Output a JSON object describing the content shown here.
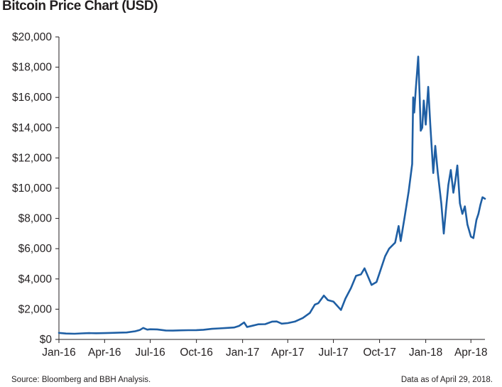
{
  "chart_data": {
    "type": "line",
    "title": "Bitcoin Price Chart  (USD)",
    "xlabel": "",
    "ylabel": "",
    "ylim": [
      0,
      20000
    ],
    "y_ticks": [
      "$0",
      "$2,000",
      "$4,000",
      "$6,000",
      "$8,000",
      "$10,000",
      "$12,000",
      "$14,000",
      "$16,000",
      "$18,000",
      "$20,000"
    ],
    "x_ticks": [
      "Jan-16",
      "Apr-16",
      "Jul-16",
      "Oct-16",
      "Jan-17",
      "Apr-17",
      "Jul-17",
      "Oct-17",
      "Jan-18",
      "Apr-18"
    ],
    "grid": false,
    "line_color": "#1f5fa4",
    "series": [
      {
        "x": [
          "2016-01-01",
          "2016-01-15",
          "2016-02-01",
          "2016-02-15",
          "2016-03-01",
          "2016-03-15",
          "2016-04-01",
          "2016-04-15",
          "2016-05-01",
          "2016-05-15",
          "2016-06-01",
          "2016-06-10",
          "2016-06-17",
          "2016-06-25",
          "2016-07-01",
          "2016-07-15",
          "2016-08-01",
          "2016-08-15",
          "2016-09-01",
          "2016-09-15",
          "2016-10-01",
          "2016-10-15",
          "2016-11-01",
          "2016-11-15",
          "2016-12-01",
          "2016-12-15",
          "2016-12-25",
          "2017-01-04",
          "2017-01-10",
          "2017-01-20",
          "2017-02-01",
          "2017-02-15",
          "2017-03-01",
          "2017-03-10",
          "2017-03-20",
          "2017-04-01",
          "2017-04-15",
          "2017-05-01",
          "2017-05-15",
          "2017-05-25",
          "2017-06-01",
          "2017-06-12",
          "2017-06-20",
          "2017-07-01",
          "2017-07-16",
          "2017-07-25",
          "2017-08-05",
          "2017-08-15",
          "2017-08-25",
          "2017-09-01",
          "2017-09-15",
          "2017-09-25",
          "2017-10-01",
          "2017-10-12",
          "2017-10-20",
          "2017-11-01",
          "2017-11-08",
          "2017-11-12",
          "2017-11-20",
          "2017-11-28",
          "2017-12-05",
          "2017-12-07",
          "2017-12-09",
          "2017-12-12",
          "2017-12-15",
          "2017-12-17",
          "2017-12-20",
          "2017-12-22",
          "2017-12-25",
          "2017-12-28",
          "2018-01-01",
          "2018-01-06",
          "2018-01-10",
          "2018-01-16",
          "2018-01-20",
          "2018-01-25",
          "2018-02-01",
          "2018-02-06",
          "2018-02-10",
          "2018-02-15",
          "2018-02-20",
          "2018-02-25",
          "2018-03-01",
          "2018-03-05",
          "2018-03-10",
          "2018-03-15",
          "2018-03-20",
          "2018-03-25",
          "2018-04-01",
          "2018-04-06",
          "2018-04-12",
          "2018-04-16",
          "2018-04-20",
          "2018-04-24",
          "2018-04-29"
        ],
        "values": [
          430,
          390,
          375,
          400,
          420,
          410,
          420,
          430,
          450,
          460,
          540,
          620,
          760,
          650,
          670,
          660,
          590,
          580,
          600,
          610,
          615,
          640,
          700,
          730,
          760,
          790,
          890,
          1120,
          820,
          900,
          1000,
          1010,
          1180,
          1190,
          1040,
          1080,
          1180,
          1420,
          1750,
          2300,
          2400,
          2900,
          2600,
          2500,
          1950,
          2700,
          3400,
          4200,
          4300,
          4700,
          3600,
          3800,
          4400,
          5500,
          6000,
          6400,
          7500,
          6500,
          8100,
          9800,
          11600,
          16000,
          15000,
          16500,
          17800,
          18700,
          16000,
          13800,
          14000,
          15800,
          14200,
          16700,
          14200,
          11000,
          12800,
          11000,
          9000,
          7000,
          8500,
          10200,
          11200,
          9700,
          10500,
          11500,
          9000,
          8300,
          8800,
          7600,
          6800,
          6700,
          7900,
          8300,
          8900,
          9400,
          9300
        ]
      }
    ],
    "source": "Source: Bloomberg and BBH Analysis.",
    "note": "Data as of April 29, 2018."
  }
}
